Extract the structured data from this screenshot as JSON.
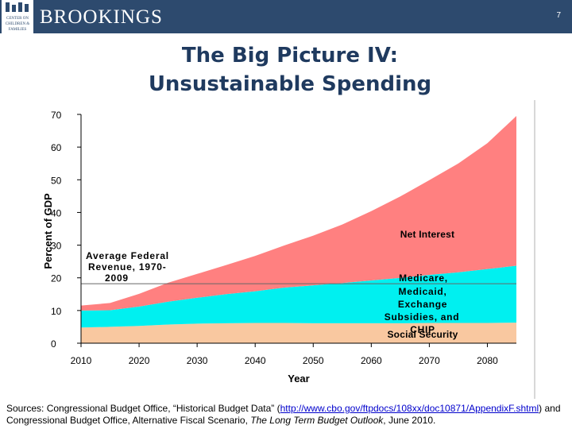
{
  "header": {
    "logo_lines": [
      "CENTER ON",
      "CHILDREN &",
      "FAMILIES"
    ],
    "org_name": "BROOKINGS",
    "slide_number": "7"
  },
  "title_line1": "The Big Picture IV:",
  "title_line2": "Unsustainable Spending",
  "chart_data": {
    "type": "area",
    "stacked": true,
    "xlabel": "Year",
    "ylabel": "Percent of GDP",
    "xlim": [
      2010,
      2085
    ],
    "ylim": [
      0,
      70
    ],
    "x_ticks": [
      "2010",
      "2020",
      "2030",
      "2040",
      "2050",
      "2060",
      "2070",
      "2080"
    ],
    "y_ticks": [
      "0",
      "10",
      "20",
      "30",
      "40",
      "50",
      "60",
      "70"
    ],
    "x": [
      2010,
      2015,
      2020,
      2025,
      2030,
      2035,
      2040,
      2045,
      2050,
      2055,
      2060,
      2065,
      2070,
      2075,
      2080,
      2085
    ],
    "series": [
      {
        "name": "Social Security",
        "color": "#f9c8a0",
        "values": [
          4.8,
          5.0,
          5.3,
          5.7,
          6.0,
          6.1,
          6.2,
          6.2,
          6.1,
          6.1,
          6.1,
          6.1,
          6.2,
          6.2,
          6.2,
          6.3
        ]
      },
      {
        "name": "Medicare, Medicaid, Exchange Subsidies, and CHIP",
        "color": "#00f0f0",
        "values": [
          5.2,
          5.1,
          5.9,
          7.0,
          7.9,
          8.9,
          9.7,
          10.8,
          11.6,
          12.3,
          13.1,
          13.9,
          14.7,
          15.5,
          16.5,
          17.4
        ]
      },
      {
        "name": "Net Interest",
        "color": "#ff8080",
        "values": [
          1.5,
          2.2,
          3.9,
          5.8,
          7.3,
          8.9,
          10.8,
          12.9,
          15.2,
          17.9,
          21.2,
          24.9,
          29.0,
          33.3,
          38.5,
          45.8
        ]
      }
    ],
    "annotations": [
      {
        "text": "Net Interest"
      },
      {
        "text": "Medicare,",
        "line": 1
      },
      {
        "text": "Medicaid,",
        "line": 2
      },
      {
        "text": "Exchange",
        "line": 3
      },
      {
        "text": "Subsidies, and",
        "line": 4
      },
      {
        "text": "CHIP",
        "line": 5
      },
      {
        "text": "Social Security"
      }
    ],
    "reference_line": {
      "value": 18.2,
      "label_lines": [
        "Average Federal",
        "Revenue, 1970-",
        "2009"
      ],
      "color": "#666666"
    }
  },
  "sources": {
    "prefix": "Sources: Congressional Budget Office, “Historical Budget Data” (",
    "link": "http://www.cbo.gov/ftpdocs/108xx/doc10871/AppendixF.shtml",
    "middle": ") and Congressional Budget Office, Alternative Fiscal Scenario, ",
    "book": "The Long Term Budget Outlook",
    "suffix": ", June 2010."
  }
}
